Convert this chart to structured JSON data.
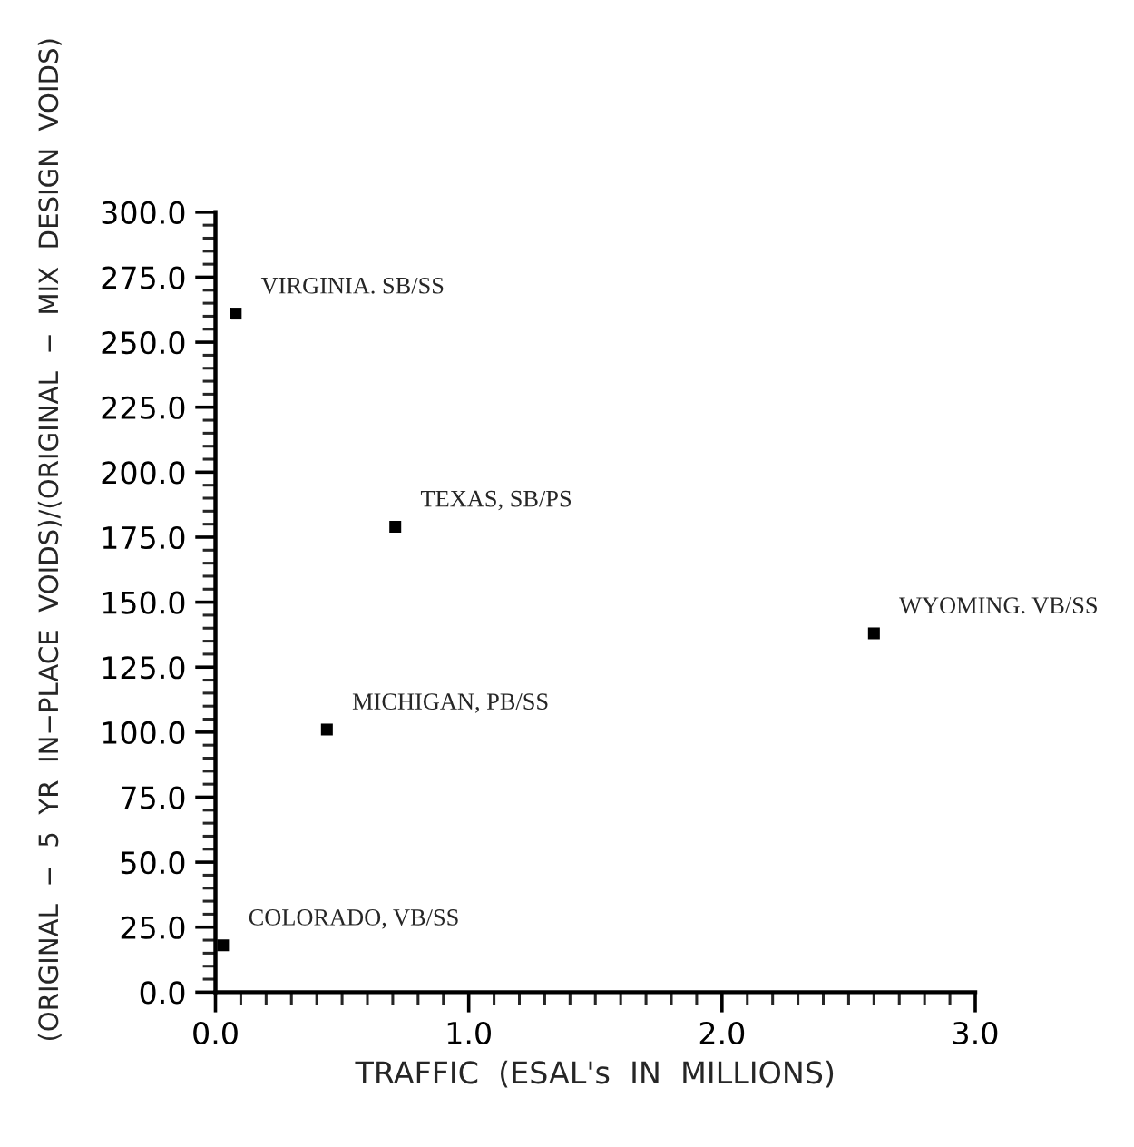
{
  "chart_data": {
    "type": "scatter",
    "xlabel": "TRAFFIC  (ESAL's  IN  MILLIONS)",
    "ylabel": "(ORIGINAL  −  5  YR  IN−PLACE  VOIDS)/(ORIGINAL  −  MIX  DESIGN  VOIDS)",
    "x": [
      0.08,
      0.71,
      0.44,
      0.03,
      2.6
    ],
    "values": [
      261,
      179,
      101,
      18,
      138
    ],
    "color": "#000000",
    "marker": "square",
    "grid": false,
    "xlim": [
      0,
      3
    ],
    "ylim": [
      0,
      300
    ],
    "xticks": [
      {
        "value": 0,
        "label": "0.0"
      },
      {
        "value": 1,
        "label": "1.0"
      },
      {
        "value": 2,
        "label": "2.0"
      },
      {
        "value": 3,
        "label": "3.0"
      }
    ],
    "yticks": [
      {
        "value": 0,
        "label": "0.0"
      },
      {
        "value": 25,
        "label": "25.0"
      },
      {
        "value": 50,
        "label": "50.0"
      },
      {
        "value": 75,
        "label": "75.0"
      },
      {
        "value": 100,
        "label": "100.0"
      },
      {
        "value": 125,
        "label": "125.0"
      },
      {
        "value": 150,
        "label": "150.0"
      },
      {
        "value": 175,
        "label": "175.0"
      },
      {
        "value": 200,
        "label": "200.0"
      },
      {
        "value": 225,
        "label": "225.0"
      },
      {
        "value": 250,
        "label": "250.0"
      },
      {
        "value": 275,
        "label": "275.0"
      },
      {
        "value": 300,
        "label": "300.0"
      }
    ],
    "annotations": [
      {
        "text": "VIRGINIA. SB/SS",
        "x": 0.08,
        "y": 261
      },
      {
        "text": "TEXAS, SB/PS",
        "x": 0.71,
        "y": 179
      },
      {
        "text": "MICHIGAN, PB/SS",
        "x": 0.44,
        "y": 101
      },
      {
        "text": "COLORADO, VB/SS",
        "x": 0.03,
        "y": 18
      },
      {
        "text": "WYOMING. VB/SS",
        "x": 2.6,
        "y": 138
      }
    ]
  }
}
